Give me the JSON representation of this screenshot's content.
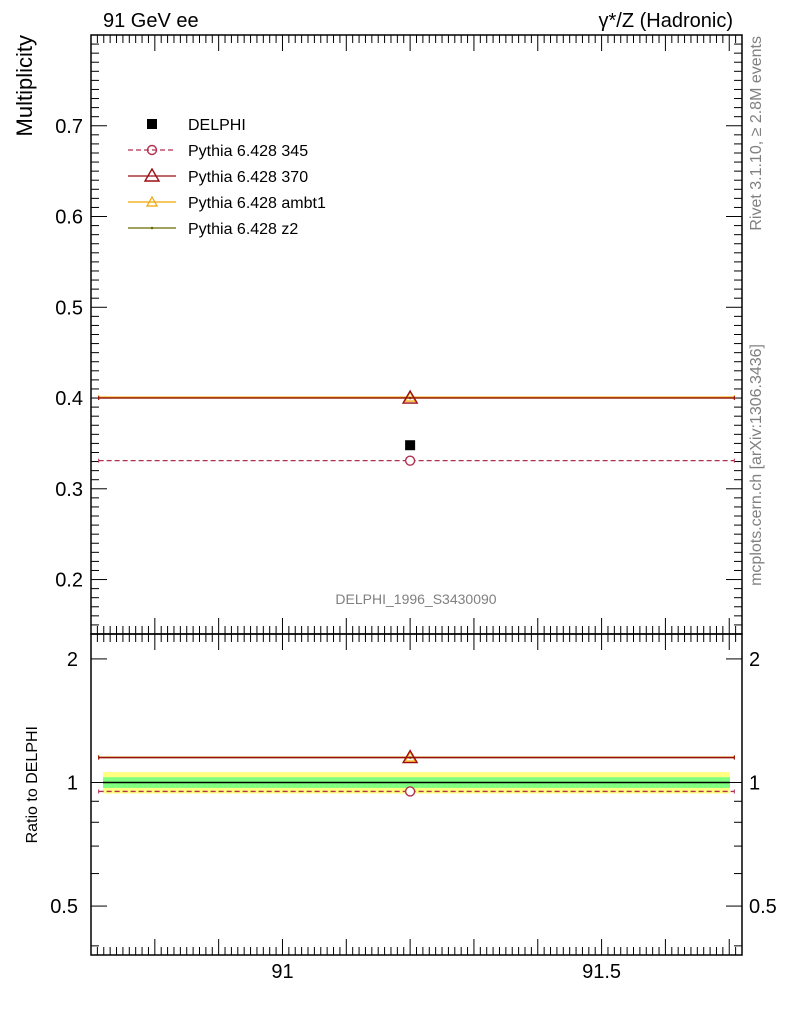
{
  "header": {
    "left": "91 GeV ee",
    "right": "γ*/Z (Hadronic)"
  },
  "side": {
    "top": "Rivet 3.1.10, ≥ 2.8M events",
    "bottom": "mcplots.cern.ch [arXiv:1306.3436]"
  },
  "colors": {
    "data": "#000000",
    "p345": "#b2304f",
    "p370": "#9b0d12",
    "ambt1": "#f0a500",
    "z2": "#6b6b00",
    "band_inner": "#7fff7f",
    "band_outer": "#ffff80"
  },
  "chart_data": [
    {
      "type": "scatter",
      "title": "",
      "ylabel": "Multiplicity",
      "xlabel": "",
      "xlim": [
        90.7,
        91.72
      ],
      "ylim": [
        0.14,
        0.8
      ],
      "yticks": [
        "0.2",
        "0.3",
        "0.4",
        "0.5",
        "0.6",
        "0.7"
      ],
      "annotation": "DELPHI_1996_S3430090",
      "legend_position": "top-left",
      "series": [
        {
          "name": "DELPHI",
          "key": "data",
          "x": [
            91.2
          ],
          "y": [
            0.348
          ],
          "marker": "square"
        },
        {
          "name": "Pythia 6.428 345",
          "key": "p345",
          "x": [
            91.2
          ],
          "y": [
            0.331
          ],
          "marker": "circle-open",
          "dashed": true
        },
        {
          "name": "Pythia 6.428 370",
          "key": "p370",
          "x": [
            91.2
          ],
          "y": [
            0.4
          ],
          "marker": "triangle-open"
        },
        {
          "name": "Pythia 6.428 ambt1",
          "key": "ambt1",
          "x": [
            91.2
          ],
          "y": [
            0.401
          ],
          "marker": "triangle-open-small"
        },
        {
          "name": "Pythia 6.428 z2",
          "key": "z2",
          "x": [
            91.2
          ],
          "y": [
            0.4
          ],
          "marker": "dot"
        }
      ]
    },
    {
      "type": "scatter",
      "title": "",
      "ylabel": "Ratio to DELPHI",
      "xlabel": "",
      "xlim": [
        90.7,
        91.72
      ],
      "ylim": [
        0.38,
        2.3
      ],
      "xticks": [
        "91",
        "91.5"
      ],
      "yticks": [
        "0.5",
        "1",
        "2"
      ],
      "band": {
        "inner": [
          0.97,
          1.03
        ],
        "outer": [
          0.94,
          1.06
        ]
      },
      "series": [
        {
          "name": "Pythia 6.428 345",
          "key": "p345",
          "x": [
            91.2
          ],
          "y": [
            0.951
          ]
        },
        {
          "name": "Pythia 6.428 370",
          "key": "p370",
          "x": [
            91.2
          ],
          "y": [
            1.15
          ]
        },
        {
          "name": "Pythia 6.428 ambt1",
          "key": "ambt1",
          "x": [
            91.2
          ],
          "y": [
            1.153
          ]
        },
        {
          "name": "Pythia 6.428 z2",
          "key": "z2",
          "x": [
            91.2
          ],
          "y": [
            1.15
          ]
        }
      ]
    }
  ]
}
